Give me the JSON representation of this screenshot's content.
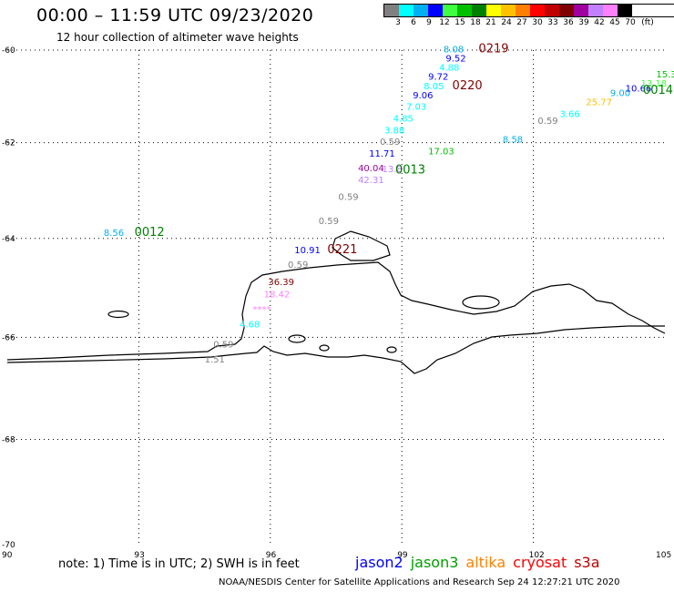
{
  "header": {
    "title": "00:00 – 11:59 UTC 09/23/2020",
    "subtitle": "12 hour collection of altimeter wave heights"
  },
  "legend": {
    "colors": [
      "#808080",
      "#00ffff",
      "#00b0f0",
      "#0000ff",
      "#40ff40",
      "#00c000",
      "#008000",
      "#ffff00",
      "#ffc000",
      "#ff8000",
      "#ff0000",
      "#c00000",
      "#800000",
      "#a000a0",
      "#c080ff",
      "#ff80ff",
      "#000000"
    ],
    "labels": [
      "3",
      "6",
      "9",
      "12",
      "15",
      "18",
      "21",
      "24",
      "27",
      "30",
      "33",
      "36",
      "39",
      "42",
      "45",
      "70"
    ],
    "unit": "(ft)"
  },
  "axes": {
    "lat_labels": [
      "-60",
      "-62",
      "-64",
      "-66",
      "-68",
      "-70"
    ],
    "lon_labels": [
      "90",
      "93",
      "96",
      "99",
      "102",
      "105"
    ]
  },
  "map": {
    "swh_labels": [
      {
        "text": "8.08",
        "color": "#00b0f0",
        "lat": -60.05,
        "lon": 99.95
      },
      {
        "text": "9.52",
        "color": "#0000ff",
        "lat": -60.25,
        "lon": 100.0
      },
      {
        "text": "4.88",
        "color": "#00ffff",
        "lat": -60.45,
        "lon": 99.85
      },
      {
        "text": "9.72",
        "color": "#0000ff",
        "lat": -60.65,
        "lon": 99.6
      },
      {
        "text": "8.05",
        "color": "#00ffff",
        "lat": -60.85,
        "lon": 99.5
      },
      {
        "text": "9.06",
        "color": "#0000ff",
        "lat": -61.05,
        "lon": 99.25
      },
      {
        "text": "7.03",
        "color": "#00ffff",
        "lat": -61.3,
        "lon": 99.1
      },
      {
        "text": "4.85",
        "color": "#00ffff",
        "lat": -61.55,
        "lon": 98.8
      },
      {
        "text": "3.88",
        "color": "#00ffff",
        "lat": -61.8,
        "lon": 98.6
      },
      {
        "text": "0.59",
        "color": "#808080",
        "lat": -62.05,
        "lon": 98.5
      },
      {
        "text": "11.71",
        "color": "#0000ff",
        "lat": -62.3,
        "lon": 98.25
      },
      {
        "text": "17.03",
        "color": "#00c000",
        "lat": -62.25,
        "lon": 99.6
      },
      {
        "text": "8.58",
        "color": "#00b0f0",
        "lat": -62.0,
        "lon": 101.3
      },
      {
        "text": "40.04",
        "color": "#a000a0",
        "lat": -62.6,
        "lon": 98.0
      },
      {
        "text": "13.8",
        "color": "#c080ff",
        "lat": -62.62,
        "lon": 98.55
      },
      {
        "text": "42.31",
        "color": "#c080ff",
        "lat": -62.85,
        "lon": 98.0
      },
      {
        "text": "0.59",
        "color": "#808080",
        "lat": -63.2,
        "lon": 97.55
      },
      {
        "text": "0.59",
        "color": "#808080",
        "lat": -63.7,
        "lon": 97.1
      },
      {
        "text": "10.91",
        "color": "#0000ff",
        "lat": -64.3,
        "lon": 96.55
      },
      {
        "text": "0.59",
        "color": "#808080",
        "lat": -64.6,
        "lon": 96.4
      },
      {
        "text": "36.39",
        "color": "#800000",
        "lat": -64.95,
        "lon": 95.95
      },
      {
        "text": "18.42",
        "color": "#ff80ff",
        "lat": -65.2,
        "lon": 95.85
      },
      {
        "text": "****",
        "color": "#ff80ff",
        "lat": -65.5,
        "lon": 95.6
      },
      {
        "text": "4.68",
        "color": "#00ffff",
        "lat": -65.8,
        "lon": 95.3
      },
      {
        "text": "0.59",
        "color": "#808080",
        "lat": -66.2,
        "lon": 94.7
      },
      {
        "text": "1.51",
        "color": "#808080",
        "lat": -66.5,
        "lon": 94.5
      },
      {
        "text": "8.56",
        "color": "#00b0f0",
        "lat": -63.95,
        "lon": 92.2
      },
      {
        "text": "0.59",
        "color": "#808080",
        "lat": -61.6,
        "lon": 102.1
      },
      {
        "text": "3.66",
        "color": "#00ffff",
        "lat": -61.45,
        "lon": 102.6
      },
      {
        "text": "25.77",
        "color": "#ffc000",
        "lat": -61.2,
        "lon": 103.2
      },
      {
        "text": "9.00",
        "color": "#00b0f0",
        "lat": -61.0,
        "lon": 103.75
      },
      {
        "text": "10.66",
        "color": "#0000ff",
        "lat": -60.9,
        "lon": 104.1
      },
      {
        "text": "13.18",
        "color": "#40ff40",
        "lat": -60.8,
        "lon": 104.45
      },
      {
        "text": "15.3",
        "color": "#00c000",
        "lat": -60.6,
        "lon": 104.8
      }
    ],
    "time_labels": [
      {
        "text": "0219",
        "color": "#800000",
        "lat": -60.05,
        "lon": 100.75
      },
      {
        "text": "0220",
        "color": "#800000",
        "lat": -60.85,
        "lon": 100.15
      },
      {
        "text": "0013",
        "color": "#008000",
        "lat": -62.65,
        "lon": 98.85
      },
      {
        "text": "0012",
        "color": "#008000",
        "lat": -63.95,
        "lon": 92.9
      },
      {
        "text": "0221",
        "color": "#800000",
        "lat": -64.3,
        "lon": 97.3
      },
      {
        "text": "0014",
        "color": "#008000",
        "lat": -60.95,
        "lon": 104.5
      }
    ]
  },
  "note": "note: 1) Time is in UTC; 2) SWH is in feet",
  "satellites": [
    {
      "name": "jason2",
      "color": "#0000ff"
    },
    {
      "name": "jason3",
      "color": "#00a000"
    },
    {
      "name": "altika",
      "color": "#ff8000"
    },
    {
      "name": "cryosat",
      "color": "#ff0000"
    },
    {
      "name": "s3a",
      "color": "#c00000"
    }
  ],
  "footer": "NOAA/NESDIS Center for Satellite Applications and Research    Sep 24 12:27:21 UTC 2020"
}
